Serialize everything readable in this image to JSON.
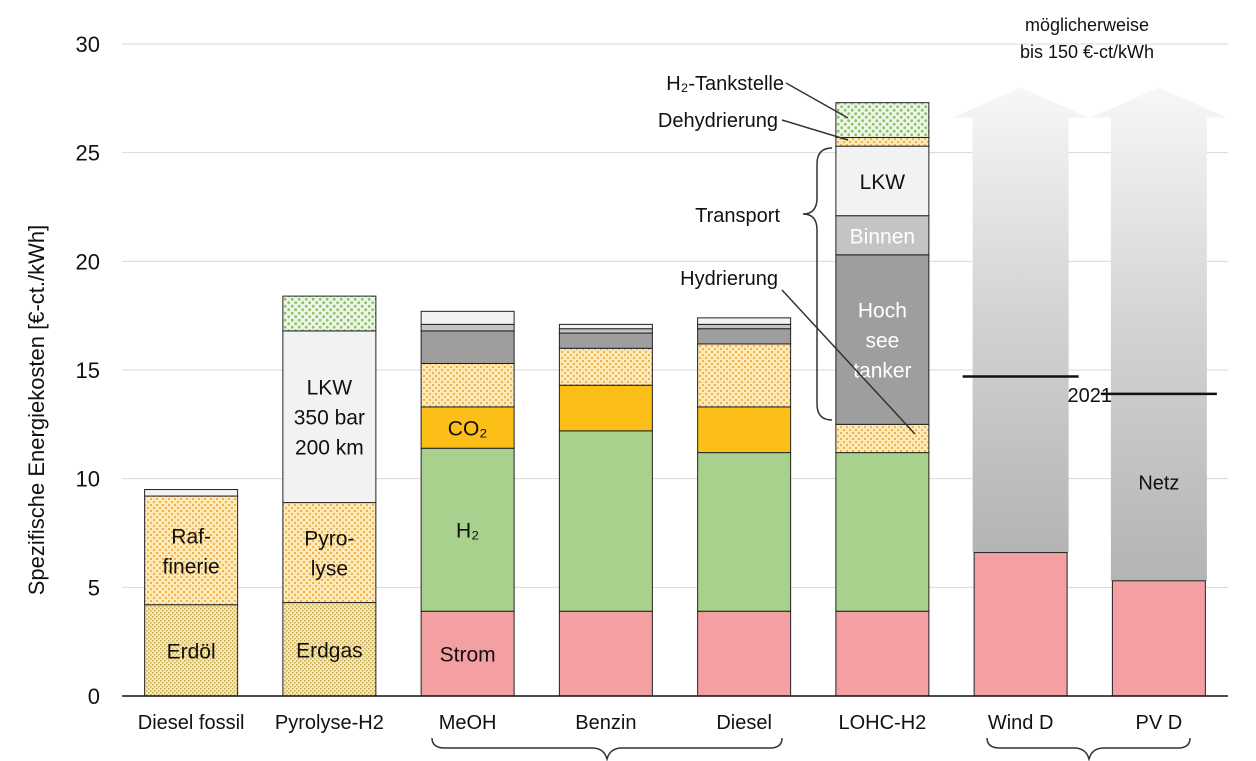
{
  "chart_data": {
    "type": "bar",
    "stacked": true,
    "ylabel": "Spezifische Energiekosten [€-ct./kWh]",
    "ylim": [
      0,
      30
    ],
    "yticks": [
      0,
      5,
      10,
      15,
      20,
      25,
      30
    ],
    "grid": true,
    "categories": [
      "Diesel fossil",
      "Pyrolyse-H2",
      "MeOH",
      "Benzin",
      "Diesel",
      "LOHC-H2",
      "Wind D",
      "PV D"
    ],
    "bars": [
      {
        "category": "Diesel fossil",
        "segments": [
          {
            "component": "Erdöl",
            "from": 0,
            "to": 4.2,
            "label": "Erdöl"
          },
          {
            "component": "Raffinerie",
            "from": 4.2,
            "to": 9.2,
            "label": "Raf-\nfinerie"
          },
          {
            "component": "Tankstelle",
            "from": 9.2,
            "to": 9.5,
            "label": ""
          }
        ]
      },
      {
        "category": "Pyrolyse-H2",
        "segments": [
          {
            "component": "Erdgas",
            "from": 0,
            "to": 4.3,
            "label": "Erdgas"
          },
          {
            "component": "Pyrolyse",
            "from": 4.3,
            "to": 8.9,
            "label": "Pyro-\nlyse"
          },
          {
            "component": "LKW",
            "from": 8.9,
            "to": 16.8,
            "label": "LKW\n350 bar\n200 km"
          },
          {
            "component": "H2-Tankstelle",
            "from": 16.8,
            "to": 18.4,
            "label": ""
          }
        ]
      },
      {
        "category": "MeOH",
        "segments": [
          {
            "component": "Strom",
            "from": 0,
            "to": 3.9,
            "label": "Strom"
          },
          {
            "component": "H2",
            "from": 3.9,
            "to": 11.4,
            "label": "H₂"
          },
          {
            "component": "CO2",
            "from": 11.4,
            "to": 13.3,
            "label": "CO₂"
          },
          {
            "component": "Synthese",
            "from": 13.3,
            "to": 15.3,
            "label": ""
          },
          {
            "component": "Hochseetanker",
            "from": 15.3,
            "to": 16.8,
            "label": ""
          },
          {
            "component": "Binnen",
            "from": 16.8,
            "to": 17.1,
            "label": ""
          },
          {
            "component": "LKW",
            "from": 17.1,
            "to": 17.7,
            "label": ""
          }
        ]
      },
      {
        "category": "Benzin",
        "segments": [
          {
            "component": "Strom",
            "from": 0,
            "to": 3.9,
            "label": ""
          },
          {
            "component": "H2",
            "from": 3.9,
            "to": 12.2,
            "label": ""
          },
          {
            "component": "CO2",
            "from": 12.2,
            "to": 14.3,
            "label": ""
          },
          {
            "component": "Synthese",
            "from": 14.3,
            "to": 16.0,
            "label": ""
          },
          {
            "component": "Hochseetanker",
            "from": 16.0,
            "to": 16.7,
            "label": ""
          },
          {
            "component": "Binnen",
            "from": 16.7,
            "to": 16.9,
            "label": ""
          },
          {
            "component": "LKW",
            "from": 16.9,
            "to": 17.1,
            "label": ""
          }
        ]
      },
      {
        "category": "Diesel",
        "segments": [
          {
            "component": "Strom",
            "from": 0,
            "to": 3.9,
            "label": ""
          },
          {
            "component": "H2",
            "from": 3.9,
            "to": 11.2,
            "label": ""
          },
          {
            "component": "CO2",
            "from": 11.2,
            "to": 13.3,
            "label": ""
          },
          {
            "component": "Synthese",
            "from": 13.3,
            "to": 16.2,
            "label": ""
          },
          {
            "component": "Hochseetanker",
            "from": 16.2,
            "to": 16.9,
            "label": ""
          },
          {
            "component": "Binnen",
            "from": 16.9,
            "to": 17.1,
            "label": ""
          },
          {
            "component": "LKW",
            "from": 17.1,
            "to": 17.4,
            "label": ""
          }
        ]
      },
      {
        "category": "LOHC-H2",
        "segments": [
          {
            "component": "Strom",
            "from": 0,
            "to": 3.9,
            "label": ""
          },
          {
            "component": "H2",
            "from": 3.9,
            "to": 11.2,
            "label": ""
          },
          {
            "component": "Hydrierung",
            "from": 11.2,
            "to": 12.5,
            "label": ""
          },
          {
            "component": "Hochseetanker",
            "from": 12.5,
            "to": 20.3,
            "label": "Hoch\nsee\ntanker"
          },
          {
            "component": "Binnen",
            "from": 20.3,
            "to": 22.1,
            "label": "Binnen"
          },
          {
            "component": "LKW",
            "from": 22.1,
            "to": 25.3,
            "label": "LKW"
          },
          {
            "component": "Dehydrierung",
            "from": 25.3,
            "to": 25.7,
            "label": ""
          },
          {
            "component": "H2-Tankstelle",
            "from": 25.7,
            "to": 27.3,
            "label": ""
          }
        ]
      },
      {
        "category": "Wind D",
        "segments": [
          {
            "component": "Strom",
            "from": 0,
            "to": 6.6,
            "label": ""
          }
        ]
      },
      {
        "category": "PV D",
        "segments": [
          {
            "component": "Strom",
            "from": 0,
            "to": 5.3,
            "label": ""
          }
        ]
      }
    ],
    "arrows": [
      {
        "category": "Wind D",
        "from": 6.6,
        "to": 28.0,
        "level_2021": 14.7
      },
      {
        "category": "PV D",
        "from": 5.3,
        "to": 28.0,
        "level_2021": 13.9
      }
    ],
    "annotations": {
      "h2_tankstelle": "H₂-Tankstelle",
      "dehydrierung": "Dehydrierung",
      "transport": "Transport",
      "hydrierung": "Hydrierung",
      "top_line1": "möglicherweise",
      "top_line2": "bis 150 €-ct/kWh",
      "year": "2021",
      "netz": "Netz"
    },
    "colors": {
      "Strom": "#f4a0a3",
      "H2": "#a9d18e",
      "CO2": "#fbbf17",
      "Synthese": "#fde3a7",
      "Hydrierung": "#fde3a7",
      "Raffinerie": "#fde3a7",
      "Pyrolyse": "#fde3a7",
      "Erdöl": "#f3e6b5",
      "Erdgas": "#f3e6b5",
      "Hochseetanker": "#9e9e9e",
      "Binnen": "#c4c4c4",
      "LKW": "#f2f2f2",
      "Tankstelle": "#f2f2f2",
      "H2-Tankstelle": "#d5e9c6",
      "Dehydrierung": "#fde3a7",
      "arrow": "#bdbdbd"
    }
  }
}
